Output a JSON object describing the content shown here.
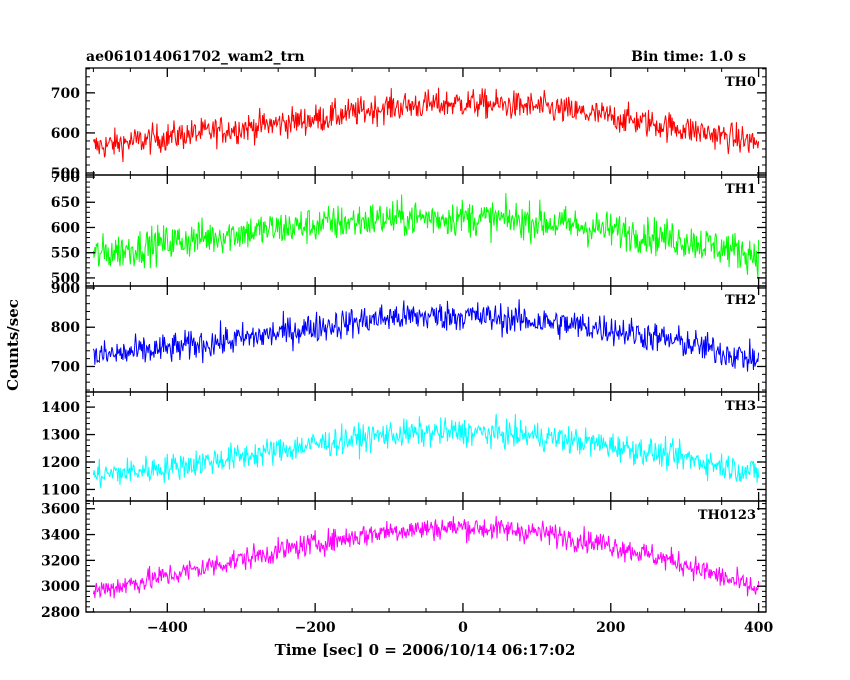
{
  "title_left": "ae061014061702_wam2_trn",
  "title_right": "Bin time: 1.0 s",
  "chart_data": {
    "type": "line",
    "title": "ae061014061702_wam2_trn",
    "bin_time": "Bin time: 1.0 s",
    "xlabel": "Time [sec] 0 = 2006/10/14 06:17:02",
    "ylabel": "Counts/sec",
    "xlim": [
      -510,
      410
    ],
    "x_ticks": [
      -400,
      -200,
      0,
      200,
      400
    ],
    "x_tick_labels": [
      "−400",
      "−200",
      "0",
      "200",
      "400"
    ],
    "x_range": [
      -500,
      400
    ],
    "grid": false,
    "shared_x_axis": true,
    "panels": [
      {
        "name": "TH0",
        "color": "#ff0000",
        "ylim": [
          495,
          762
        ],
        "y_ticks": [
          500,
          600,
          700
        ],
        "y_tick_labels": [
          "500",
          "600",
          "700"
        ],
        "series": [
          {
            "name": "TH0",
            "x": [
              -500,
              -400,
              -300,
              -200,
              -100,
              0,
              100,
              200,
              300,
              400
            ],
            "values": [
              565,
              590,
              612,
              635,
              665,
              675,
              665,
              640,
              610,
              575
            ],
            "noise": 30
          }
        ]
      },
      {
        "name": "TH1",
        "color": "#00ff00",
        "ylim": [
          484,
          704
        ],
        "y_ticks": [
          500,
          550,
          600,
          650,
          700
        ],
        "y_tick_labels": [
          "500",
          "550",
          "600",
          "650",
          "700"
        ],
        "series": [
          {
            "name": "TH1",
            "x": [
              -500,
              -400,
              -300,
              -200,
              -100,
              0,
              100,
              200,
              300,
              400
            ],
            "values": [
              545,
              570,
              590,
              605,
              618,
              620,
              612,
              595,
              575,
              545
            ],
            "noise": 30
          }
        ]
      },
      {
        "name": "TH2",
        "color": "#0000ff",
        "ylim": [
          635,
          905
        ],
        "y_ticks": [
          700,
          800,
          900
        ],
        "y_tick_labels": [
          "700",
          "800",
          "900"
        ],
        "series": [
          {
            "name": "TH2",
            "x": [
              -500,
              -400,
              -300,
              -200,
              -100,
              0,
              100,
              200,
              300,
              400
            ],
            "values": [
              725,
              745,
              770,
              800,
              825,
              830,
              815,
              795,
              760,
              715
            ],
            "noise": 32
          }
        ]
      },
      {
        "name": "TH3",
        "color": "#00ffff",
        "ylim": [
          1058,
          1455
        ],
        "y_ticks": [
          1100,
          1200,
          1300,
          1400
        ],
        "y_tick_labels": [
          "1100",
          "1200",
          "1300",
          "1400"
        ],
        "series": [
          {
            "name": "TH3",
            "x": [
              -500,
              -400,
              -300,
              -200,
              -100,
              0,
              100,
              200,
              300,
              400
            ],
            "values": [
              1150,
              1180,
              1220,
              1265,
              1300,
              1310,
              1295,
              1260,
              1215,
              1160
            ],
            "noise": 42
          }
        ]
      },
      {
        "name": "TH0123",
        "color": "#ff00ff",
        "ylim": [
          2800,
          3660
        ],
        "y_ticks": [
          2800,
          3000,
          3200,
          3400,
          3600
        ],
        "y_tick_labels": [
          "2800",
          "3000",
          "3200",
          "3400",
          "3600"
        ],
        "series": [
          {
            "name": "TH0123",
            "x": [
              -500,
              -400,
              -300,
              -200,
              -100,
              0,
              100,
              200,
              300,
              400
            ],
            "values": [
              2960,
              3080,
              3210,
              3330,
              3430,
              3460,
              3420,
              3320,
              3170,
              2970
            ],
            "noise": 75
          }
        ]
      }
    ]
  }
}
